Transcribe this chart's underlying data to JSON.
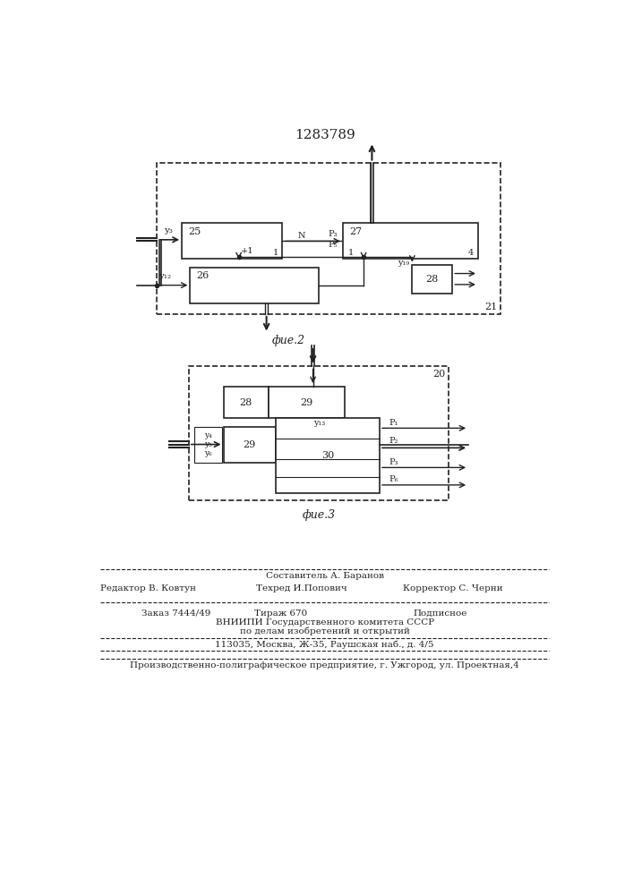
{
  "title": "1283789",
  "bg_color": "#ffffff",
  "line_color": "#222222",
  "fig2_caption": "фие.2",
  "fig3_caption": "фие.3"
}
